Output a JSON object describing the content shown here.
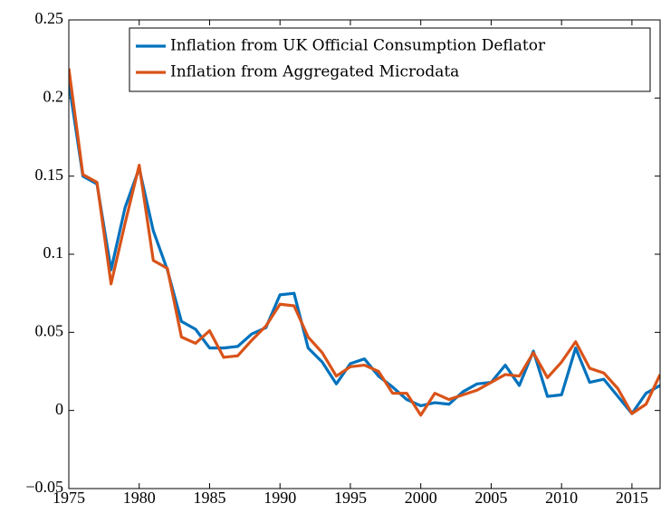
{
  "chart_data": {
    "type": "line",
    "x": [
      1975,
      1976,
      1977,
      1978,
      1979,
      1980,
      1981,
      1982,
      1983,
      1984,
      1985,
      1986,
      1987,
      1988,
      1989,
      1990,
      1991,
      1992,
      1993,
      1994,
      1995,
      1996,
      1997,
      1998,
      1999,
      2000,
      2001,
      2002,
      2003,
      2004,
      2005,
      2006,
      2007,
      2008,
      2009,
      2010,
      2011,
      2012,
      2013,
      2014,
      2015,
      2016,
      2017
    ],
    "series": [
      {
        "name": "Inflation from UK Official Consumption Deflator",
        "color": "#0072bd",
        "values": [
          0.21,
          0.15,
          0.145,
          0.09,
          0.13,
          0.155,
          0.115,
          0.09,
          0.057,
          0.052,
          0.04,
          0.04,
          0.041,
          0.049,
          0.053,
          0.074,
          0.075,
          0.04,
          0.031,
          0.017,
          0.03,
          0.033,
          0.022,
          0.015,
          0.007,
          0.003,
          0.005,
          0.004,
          0.012,
          0.017,
          0.018,
          0.029,
          0.016,
          0.038,
          0.009,
          0.01,
          0.04,
          0.018,
          0.02,
          0.009,
          -0.002,
          0.011,
          0.016
        ]
      },
      {
        "name": "Inflation from Aggregated Microdata",
        "color": "#d95319",
        "values": [
          0.219,
          0.151,
          0.146,
          0.081,
          0.12,
          0.157,
          0.096,
          0.091,
          0.047,
          0.043,
          0.051,
          0.034,
          0.035,
          0.045,
          0.054,
          0.068,
          0.067,
          0.047,
          0.037,
          0.022,
          0.028,
          0.029,
          0.025,
          0.011,
          0.011,
          -0.003,
          0.011,
          0.007,
          0.01,
          0.013,
          0.018,
          0.023,
          0.022,
          0.037,
          0.021,
          0.031,
          0.044,
          0.027,
          0.024,
          0.014,
          -0.002,
          0.004,
          0.023
        ]
      }
    ],
    "xlim": [
      1975,
      2017
    ],
    "xticks": [
      1975,
      1980,
      1985,
      1990,
      1995,
      2000,
      2005,
      2010,
      2015
    ],
    "ylim": [
      -0.05,
      0.25
    ],
    "yticks": [
      {
        "value": -0.05,
        "label": "−0.05"
      },
      0,
      0.05,
      0.1,
      0.15,
      0.2,
      0.25
    ],
    "legend": "upper right"
  }
}
